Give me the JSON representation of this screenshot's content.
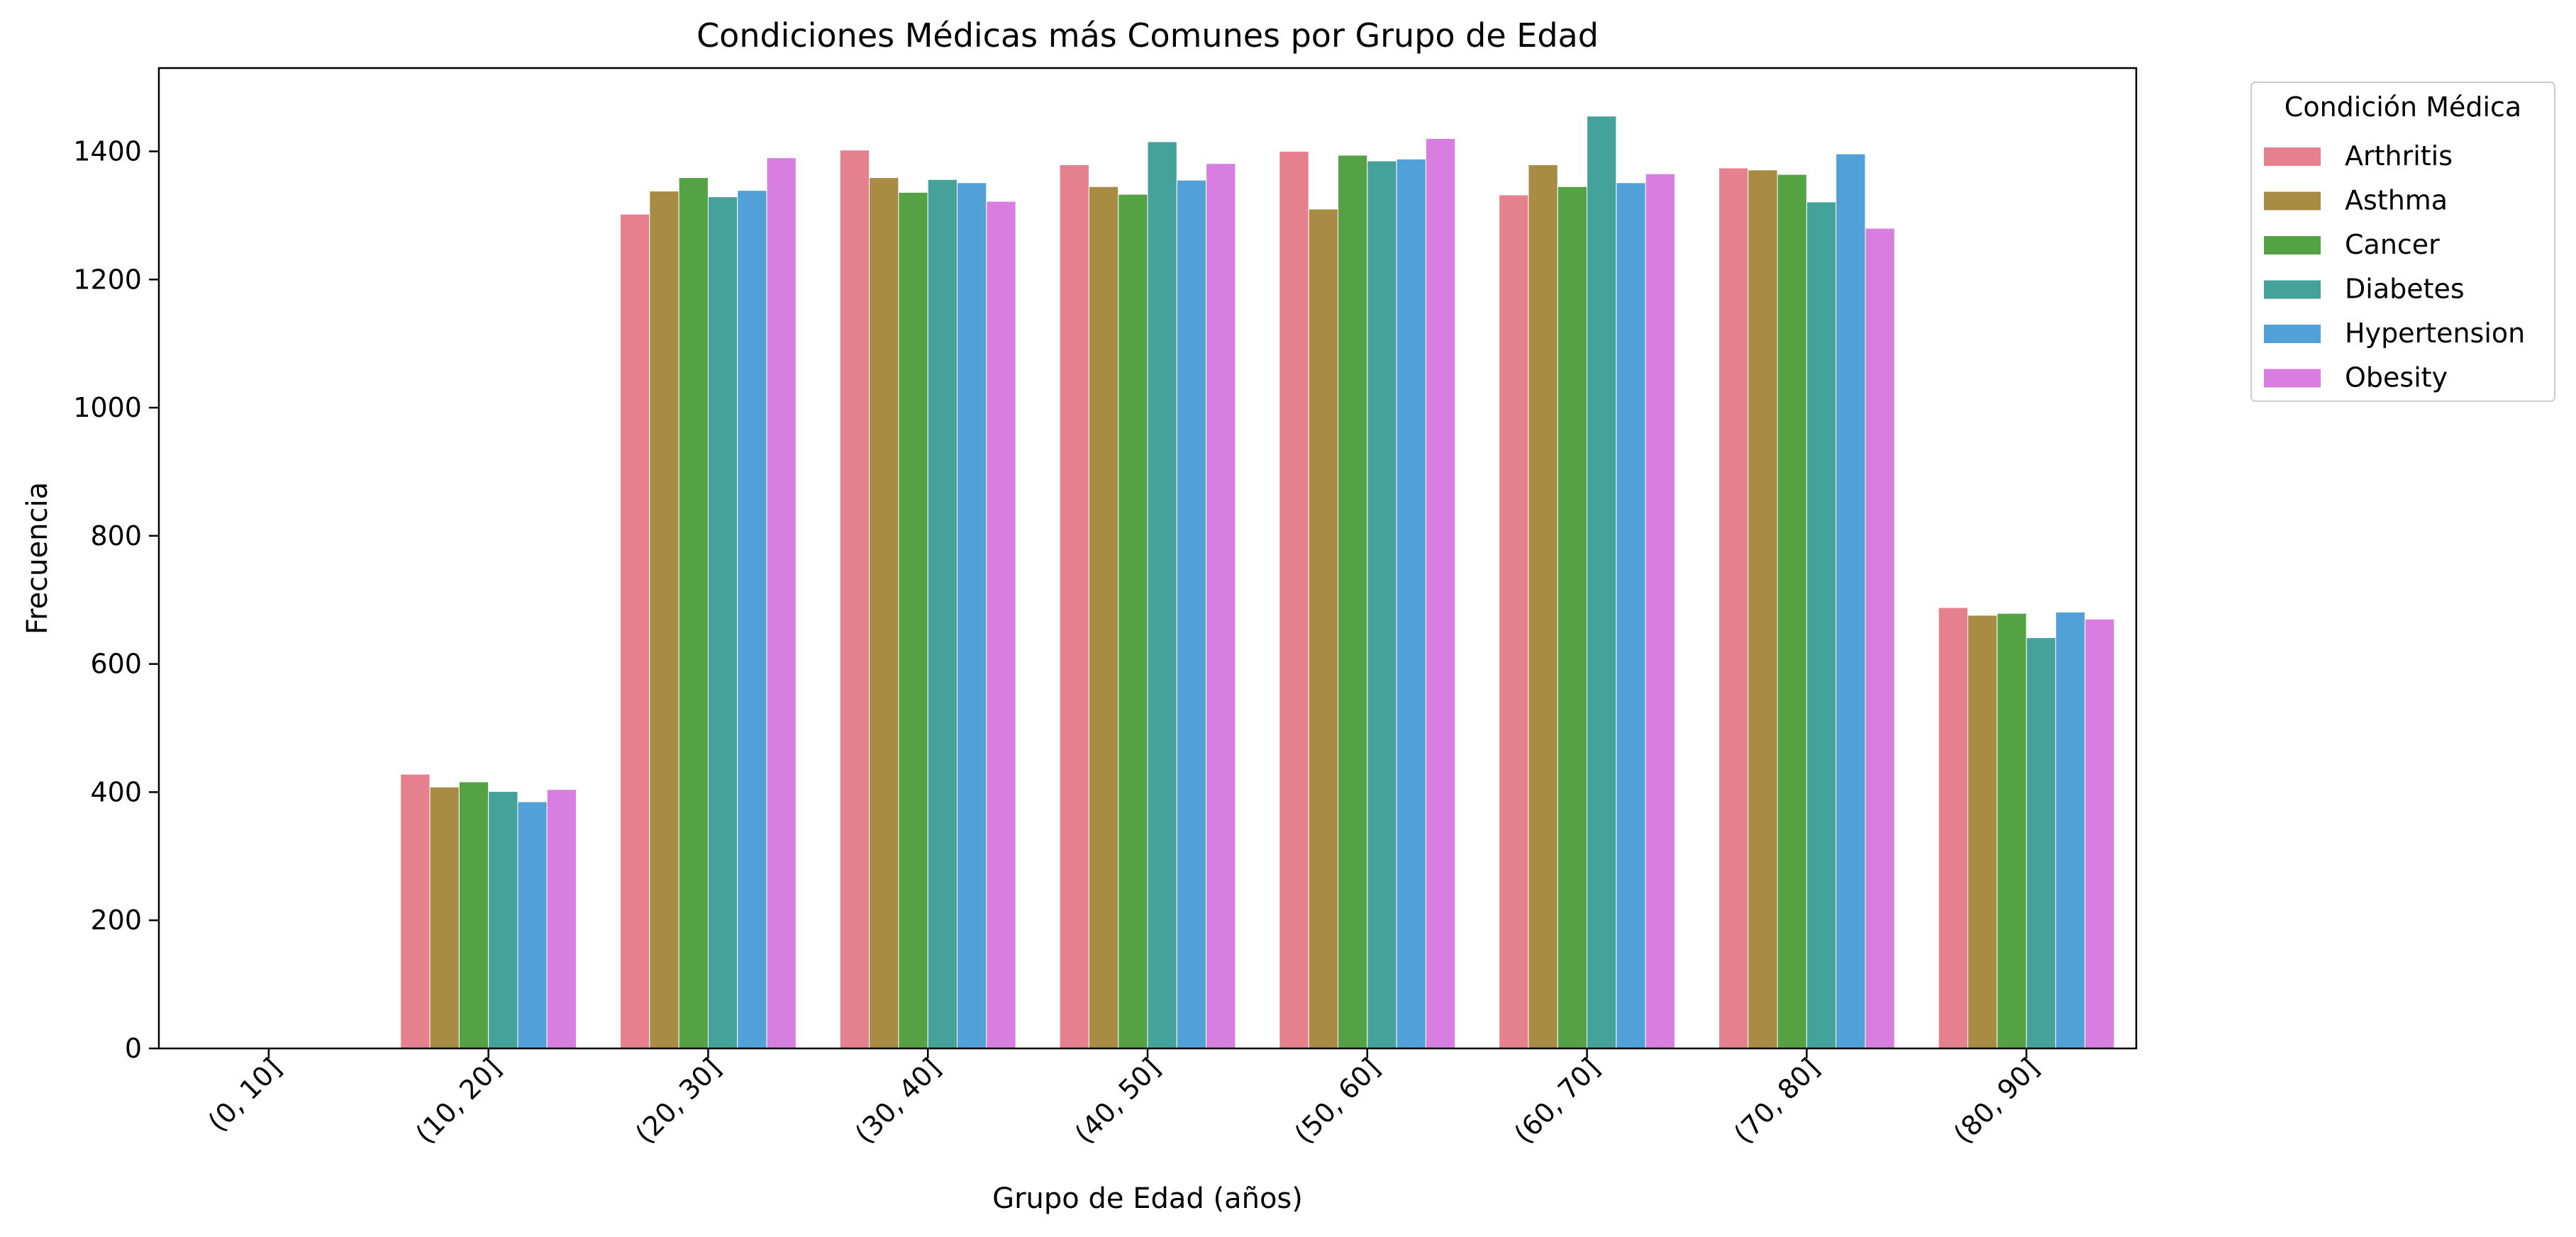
{
  "chart_data": {
    "type": "bar",
    "title": "Condiciones Médicas más Comunes por Grupo de Edad",
    "xlabel": "Grupo de Edad (años)",
    "ylabel": "Frecuencia",
    "ylim": [
      0,
      1530
    ],
    "yticks": [
      0,
      200,
      400,
      600,
      800,
      1000,
      1200,
      1400
    ],
    "grid": false,
    "legend_title": "Condición Médica",
    "legend_position": "outside-top-right",
    "categories": [
      "(0, 10]",
      "(10, 20]",
      "(20, 30]",
      "(30, 40]",
      "(40, 50]",
      "(50, 60]",
      "(60, 70]",
      "(70, 80]",
      "(80, 90]"
    ],
    "series": [
      {
        "name": "Arthritis",
        "color": "#E5808E",
        "values": [
          0,
          428,
          1302,
          1402,
          1379,
          1400,
          1332,
          1374,
          688
        ]
      },
      {
        "name": "Asthma",
        "color": "#A98C43",
        "values": [
          0,
          408,
          1338,
          1359,
          1345,
          1310,
          1379,
          1371,
          676
        ]
      },
      {
        "name": "Cancer",
        "color": "#55A244",
        "values": [
          0,
          416,
          1359,
          1336,
          1333,
          1394,
          1345,
          1364,
          679
        ]
      },
      {
        "name": "Diabetes",
        "color": "#45A29A",
        "values": [
          0,
          401,
          1329,
          1356,
          1415,
          1385,
          1455,
          1321,
          641
        ]
      },
      {
        "name": "Hypertension",
        "color": "#51A0D8",
        "values": [
          0,
          385,
          1339,
          1351,
          1355,
          1388,
          1351,
          1396,
          681
        ]
      },
      {
        "name": "Obesity",
        "color": "#D87EE0",
        "values": [
          0,
          404,
          1390,
          1322,
          1381,
          1420,
          1365,
          1280,
          670
        ]
      }
    ]
  }
}
